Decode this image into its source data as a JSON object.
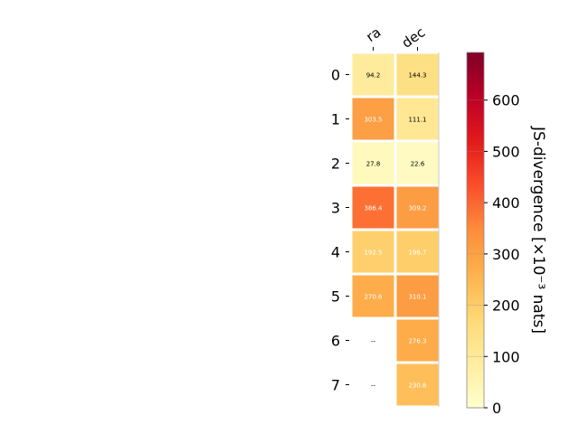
{
  "chart_data": {
    "type": "heatmap",
    "columns": [
      "ra",
      "dec"
    ],
    "rows": [
      "0",
      "1",
      "2",
      "3",
      "4",
      "5",
      "6",
      "7"
    ],
    "values": [
      [
        94.2,
        144.3
      ],
      [
        303.5,
        111.1
      ],
      [
        27.8,
        22.6
      ],
      [
        386.4,
        309.2
      ],
      [
        192.5,
        196.7
      ],
      [
        270.6,
        310.1
      ],
      [
        null,
        276.3
      ],
      [
        null,
        230.6
      ]
    ],
    "cell_labels": [
      [
        "94.2",
        "144.3"
      ],
      [
        "303.5",
        "111.1"
      ],
      [
        "27.8",
        "22.6"
      ],
      [
        "386.4",
        "309.2"
      ],
      [
        "192.5",
        "196.7"
      ],
      [
        "270.6",
        "310.1"
      ],
      [
        "--",
        "276.3"
      ],
      [
        "--",
        "230.6"
      ]
    ],
    "colorbar": {
      "label": "JS-divergence [×10⁻³ nats]",
      "colormap": "YlOrRd",
      "range": [
        0,
        693
      ],
      "ticks": [
        0,
        100,
        200,
        300,
        400,
        500,
        600
      ]
    }
  }
}
